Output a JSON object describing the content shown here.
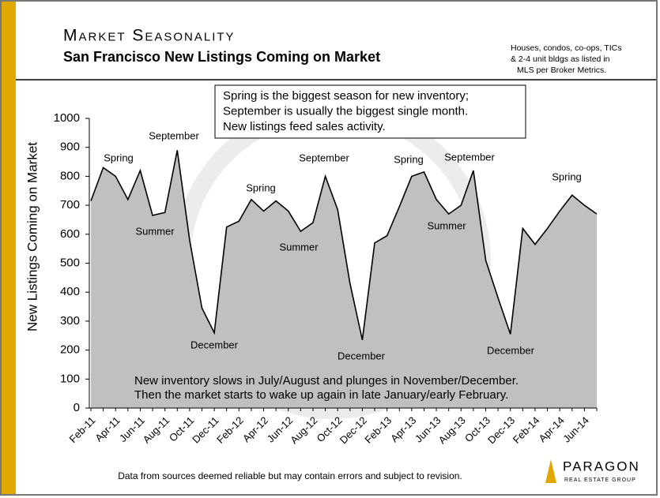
{
  "chart_data": {
    "type": "area",
    "title": "Market Seasonality",
    "subtitle": "San Francisco New Listings Coming on Market",
    "note": [
      "Houses, condos, co-ops, TICs",
      "& 2-4 unit bldgs as listed in",
      "MLS per Broker Metrics."
    ],
    "y_label": "New Listings Coming on Market",
    "categories": [
      "Feb-11",
      null,
      "Apr-11",
      null,
      "Jun-11",
      null,
      "Aug-11",
      null,
      "Oct-11",
      null,
      "Dec-11",
      null,
      "Feb-12",
      null,
      "Apr-12",
      null,
      "Jun-12",
      null,
      "Aug-12",
      null,
      "Oct-12",
      null,
      "Dec-12",
      null,
      "Feb-13",
      null,
      "Apr-13",
      null,
      "Jun-13",
      null,
      "Aug-13",
      null,
      "Oct-13",
      null,
      "Dec-13",
      null,
      "Feb-14",
      null,
      "Apr-14",
      null,
      "Jun-14",
      null
    ],
    "values": [
      715,
      830,
      800,
      720,
      820,
      665,
      675,
      890,
      580,
      345,
      260,
      625,
      645,
      720,
      680,
      715,
      680,
      610,
      640,
      800,
      685,
      430,
      235,
      570,
      595,
      695,
      800,
      815,
      720,
      670,
      700,
      820,
      510,
      380,
      255,
      620,
      565,
      620,
      680,
      735,
      700,
      670
    ],
    "color": "#c0c0c0",
    "line_color": "#000000",
    "ylim": [
      0,
      1000
    ],
    "yticks": [
      0,
      100,
      200,
      300,
      400,
      500,
      600,
      700,
      800,
      900,
      1000
    ],
    "annotations": [
      "Spring",
      "September",
      "Summer",
      "December",
      "Spring",
      "Summer",
      "September",
      "December",
      "Spring",
      "September",
      "Summer",
      "December",
      "Spring"
    ],
    "callout": [
      "Spring is the biggest season for new inventory;",
      "September is usually the biggest single month.",
      "New listings feed sales activity."
    ],
    "bottom_note": [
      "New inventory slows in July/August and plunges in November/December.",
      "Then the market starts to wake up again in late January/early February."
    ],
    "footer": "Data from sources deemed reliable but may contain errors and subject to revision.",
    "logo": {
      "name": "PARAGON",
      "tagline": "REAL ESTATE GROUP"
    }
  }
}
